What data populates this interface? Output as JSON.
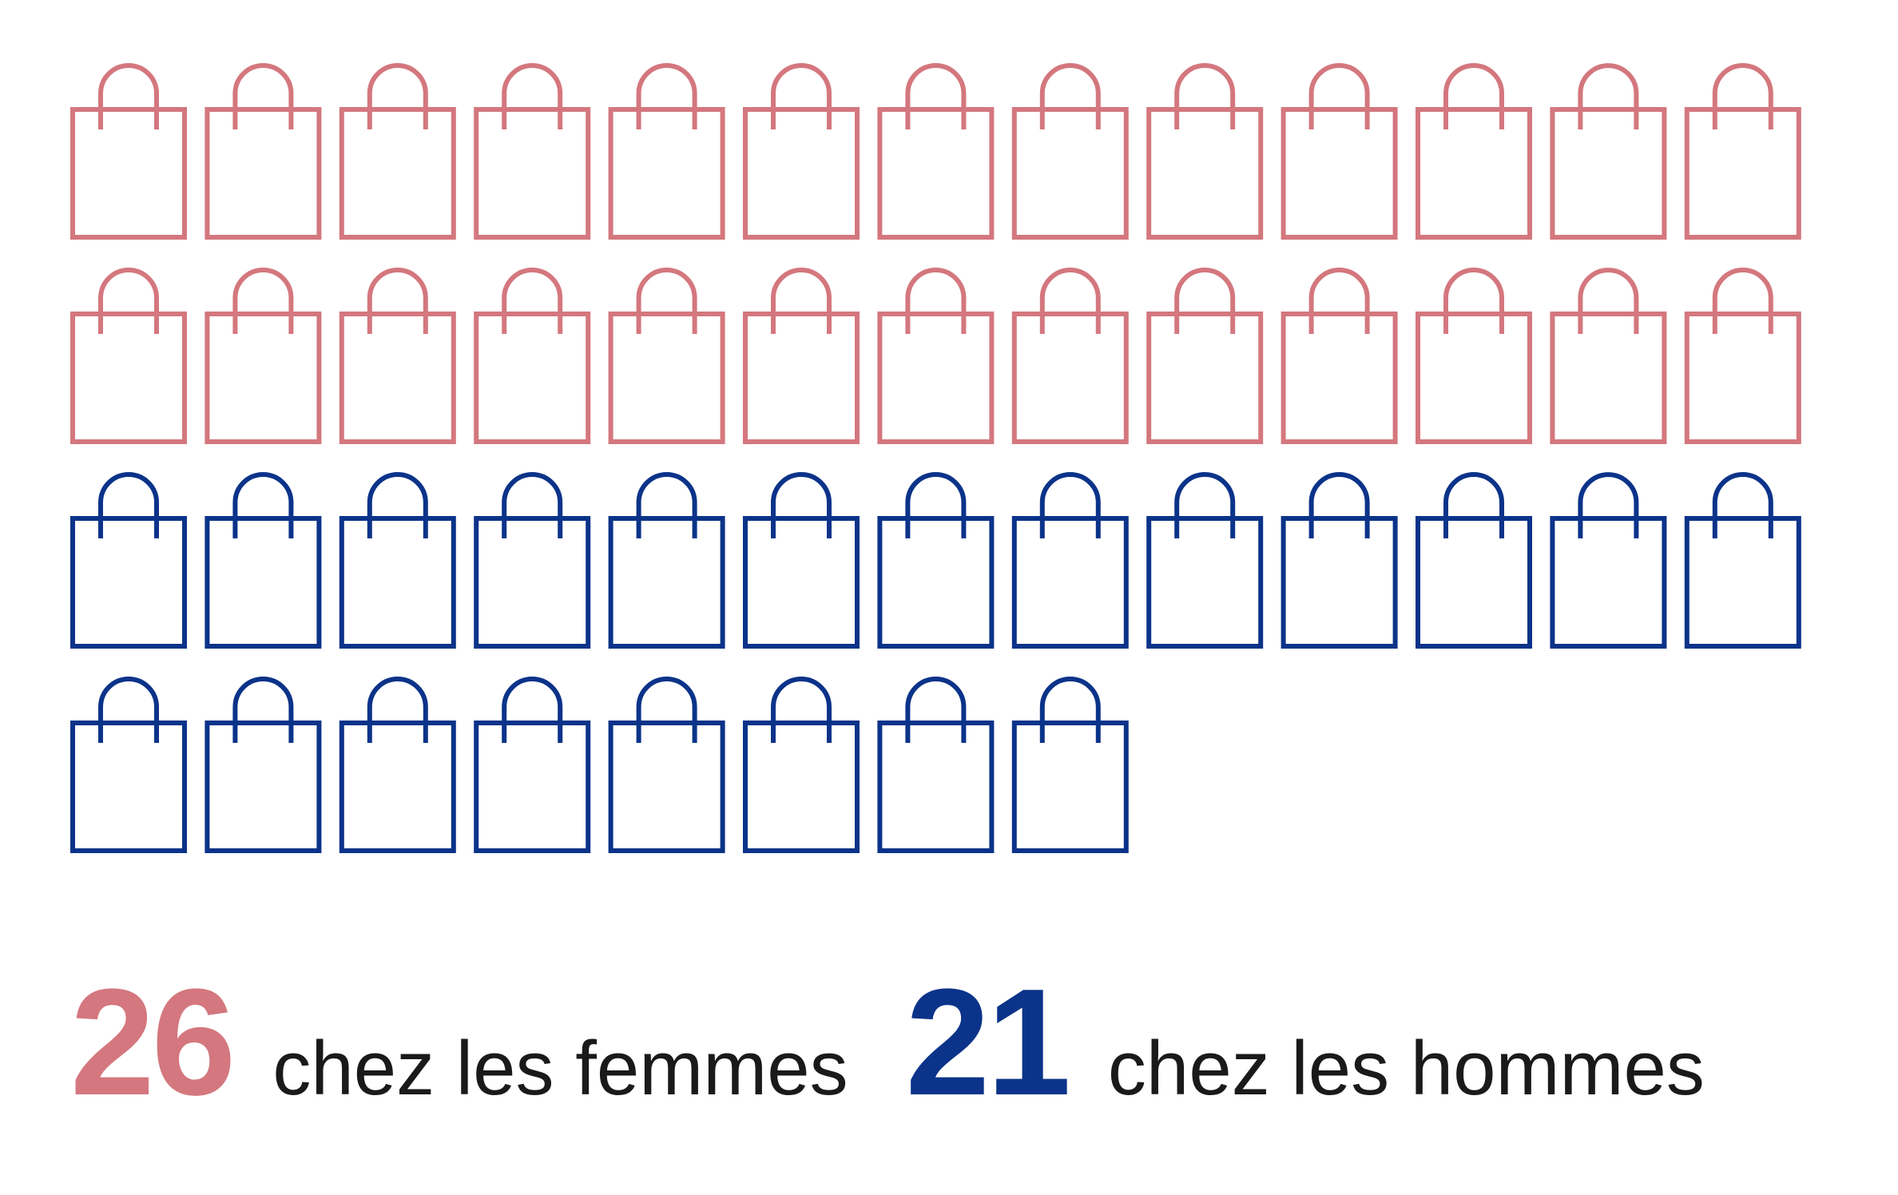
{
  "colors": {
    "women": "#d4777e",
    "men": "#0b3389",
    "text": "#1a1a1a"
  },
  "icon": "shopping-bag-icon",
  "chart_data": {
    "type": "pictogram",
    "icons_per_row": 13,
    "series": [
      {
        "value": 26,
        "label": "chez les femmes",
        "color": "#d4777e"
      },
      {
        "value": 21,
        "label": "chez les hommes",
        "color": "#0b3389"
      }
    ]
  }
}
